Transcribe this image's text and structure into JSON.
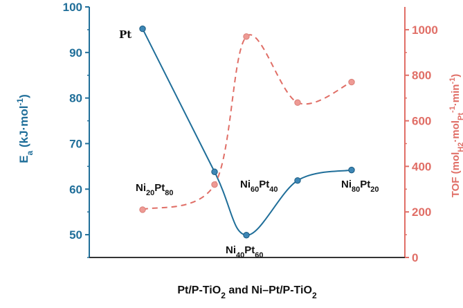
{
  "chart_data": {
    "type": "line",
    "title": "",
    "xlabel": "Pt/P-TiO2 and Ni–Pt/P-TiO2",
    "categories": [
      "Pt",
      "Ni20Pt80",
      "Ni40Pt60",
      "Ni60Pt40",
      "Ni80Pt20"
    ],
    "category_labels": [
      {
        "base": "Pt",
        "parts": []
      },
      {
        "parts": [
          [
            "Ni",
            ""
          ],
          [
            "20",
            "sub"
          ],
          [
            "Pt",
            ""
          ],
          [
            "80",
            "sub"
          ]
        ]
      },
      {
        "parts": [
          [
            "Ni",
            ""
          ],
          [
            "40",
            "sub"
          ],
          [
            "Pt",
            ""
          ],
          [
            "60",
            "sub"
          ]
        ]
      },
      {
        "parts": [
          [
            "Ni",
            ""
          ],
          [
            "60",
            "sub"
          ],
          [
            "Pt",
            ""
          ],
          [
            "40",
            "sub"
          ]
        ]
      },
      {
        "parts": [
          [
            "Ni",
            ""
          ],
          [
            "80",
            "sub"
          ],
          [
            "Pt",
            ""
          ],
          [
            "20",
            "sub"
          ]
        ]
      }
    ],
    "y_left": {
      "label_parts": [
        [
          "E",
          ""
        ],
        [
          "a",
          "sub"
        ],
        [
          " (kJ·mol",
          ""
        ],
        [
          "-1",
          "sup"
        ],
        [
          ")",
          ""
        ]
      ],
      "ylim": [
        45,
        100
      ],
      "ticks": [
        50,
        60,
        70,
        80,
        90,
        100
      ],
      "color": "#1f6e99"
    },
    "y_right": {
      "label_parts": [
        [
          "TOF (mol",
          ""
        ],
        [
          "H2",
          "sub"
        ],
        [
          "·mol",
          ""
        ],
        [
          "Pt",
          "sub"
        ],
        [
          "-1",
          "sup"
        ],
        [
          "·min",
          ""
        ],
        [
          "-1",
          "sup"
        ],
        [
          ")",
          ""
        ]
      ],
      "ylim": [
        0,
        1100
      ],
      "ticks": [
        0,
        200,
        400,
        600,
        800,
        1000
      ],
      "color": "#e06e66"
    },
    "series": [
      {
        "axis": "left",
        "style": "solid",
        "color": "#1f6e99",
        "values": [
          95.2,
          63.8,
          49.9,
          61.9,
          64.2
        ]
      },
      {
        "axis": "right",
        "style": "dashed",
        "color": "#e06e66",
        "values": [
          210,
          320,
          970,
          680,
          770
        ]
      }
    ]
  },
  "xlabel_parts": [
    [
      "Pt/P-TiO",
      ""
    ],
    [
      "2",
      "sub"
    ],
    [
      " and Ni–Pt/P-TiO",
      ""
    ],
    [
      "2",
      "sub"
    ]
  ]
}
